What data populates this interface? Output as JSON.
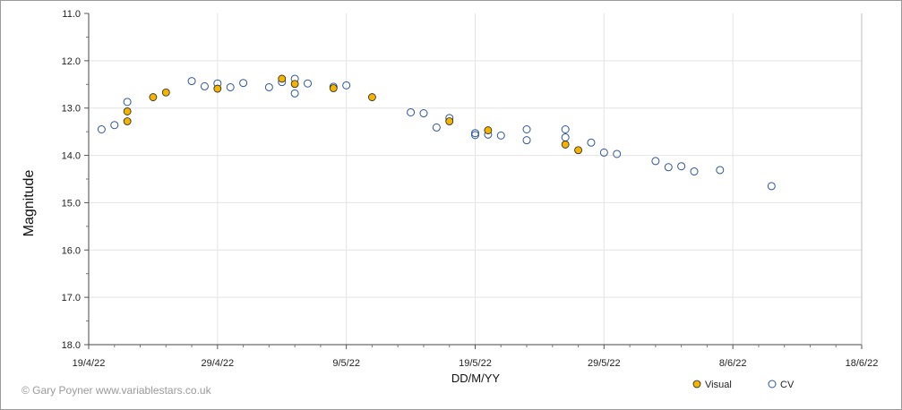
{
  "chart_data": {
    "type": "scatter",
    "xlabel": "DD/M/YY",
    "ylabel": "Magnitude",
    "x_ticks": [
      "19/4/22",
      "29/4/22",
      "9/5/22",
      "19/5/22",
      "29/5/22",
      "8/6/22",
      "18/6/22"
    ],
    "xlim": [
      "2022-04-19",
      "2022-06-18"
    ],
    "ylim": [
      11.0,
      18.0
    ],
    "y_inverted": true,
    "y_ticks": [
      "11.0",
      "12.0",
      "13.0",
      "14.0",
      "15.0",
      "16.0",
      "17.0",
      "18.0"
    ],
    "grid": true,
    "legend_position": "bottom-right",
    "series": [
      {
        "name": "Visual",
        "marker": "filled-circle",
        "color": "#f2b400",
        "points": [
          [
            "2022-04-22",
            13.07
          ],
          [
            "2022-04-22",
            13.28
          ],
          [
            "2022-04-24",
            12.77
          ],
          [
            "2022-04-25",
            12.67
          ],
          [
            "2022-04-29",
            12.59
          ],
          [
            "2022-05-04",
            12.38
          ],
          [
            "2022-05-05",
            12.49
          ],
          [
            "2022-05-08",
            12.58
          ],
          [
            "2022-05-11",
            12.77
          ],
          [
            "2022-05-17",
            13.28
          ],
          [
            "2022-05-20",
            13.47
          ],
          [
            "2022-05-26",
            13.77
          ],
          [
            "2022-05-27",
            13.89
          ]
        ]
      },
      {
        "name": "CV",
        "marker": "open-circle",
        "color": "#2f5597",
        "points": [
          [
            "2022-04-20",
            13.45
          ],
          [
            "2022-04-21",
            13.36
          ],
          [
            "2022-04-22",
            12.87
          ],
          [
            "2022-04-27",
            12.43
          ],
          [
            "2022-04-28",
            12.54
          ],
          [
            "2022-04-29",
            12.48
          ],
          [
            "2022-04-30",
            12.56
          ],
          [
            "2022-05-01",
            12.47
          ],
          [
            "2022-05-03",
            12.56
          ],
          [
            "2022-05-04",
            12.45
          ],
          [
            "2022-05-05",
            12.38
          ],
          [
            "2022-05-05",
            12.69
          ],
          [
            "2022-05-06",
            12.48
          ],
          [
            "2022-05-08",
            12.55
          ],
          [
            "2022-05-09",
            12.52
          ],
          [
            "2022-05-14",
            13.09
          ],
          [
            "2022-05-15",
            13.11
          ],
          [
            "2022-05-16",
            13.41
          ],
          [
            "2022-05-17",
            13.21
          ],
          [
            "2022-05-19",
            13.53
          ],
          [
            "2022-05-19",
            13.57
          ],
          [
            "2022-05-20",
            13.56
          ],
          [
            "2022-05-21",
            13.58
          ],
          [
            "2022-05-23",
            13.45
          ],
          [
            "2022-05-23",
            13.68
          ],
          [
            "2022-05-26",
            13.45
          ],
          [
            "2022-05-26",
            13.62
          ],
          [
            "2022-05-28",
            13.73
          ],
          [
            "2022-05-29",
            13.94
          ],
          [
            "2022-05-30",
            13.97
          ],
          [
            "2022-06-02",
            14.12
          ],
          [
            "2022-06-03",
            14.25
          ],
          [
            "2022-06-04",
            14.23
          ],
          [
            "2022-06-05",
            14.34
          ],
          [
            "2022-06-07",
            14.31
          ],
          [
            "2022-06-11",
            14.65
          ]
        ]
      }
    ]
  },
  "footer": {
    "copyright": "© Gary Poyner www.variablestars.co.uk"
  }
}
